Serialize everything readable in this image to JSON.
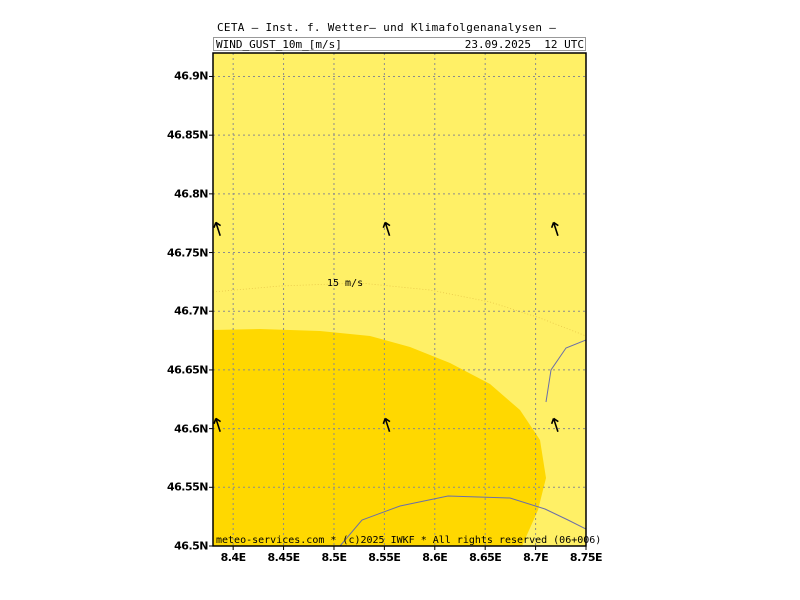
{
  "header": {
    "title": "CETA — Inst. f. Wetter— und Klimafolgenanalysen —",
    "field": "WIND_GUST_10m_[m/s]",
    "datetime": "23.09.2025  12 UTC"
  },
  "map": {
    "lat_range": [
      46.5,
      46.92
    ],
    "lon_range": [
      8.38,
      8.75
    ],
    "lat_ticks": [
      "46.5N",
      "46.55N",
      "46.6N",
      "46.65N",
      "46.7N",
      "46.75N",
      "46.8N",
      "46.85N",
      "46.9N"
    ],
    "lon_ticks": [
      "8.4E",
      "8.45E",
      "8.5E",
      "8.55E",
      "8.6E",
      "8.65E",
      "8.7E",
      "8.75E"
    ],
    "colors": {
      "light_yellow": "#fff066",
      "dark_yellow": "#ffd800",
      "border_line": "#6b6fa8",
      "grid": "#8c8c8c"
    },
    "contour_label": "15 m/s",
    "wind_arrows": [
      {
        "lon": 8.385,
        "lat": 46.77
      },
      {
        "lon": 8.553,
        "lat": 46.77
      },
      {
        "lon": 8.72,
        "lat": 46.77
      },
      {
        "lon": 8.385,
        "lat": 46.603
      },
      {
        "lon": 8.553,
        "lat": 46.603
      },
      {
        "lon": 8.72,
        "lat": 46.603
      }
    ]
  },
  "footer": "meteo-services.com * (c)2025 IWKF * All rights reserved (06+006)"
}
